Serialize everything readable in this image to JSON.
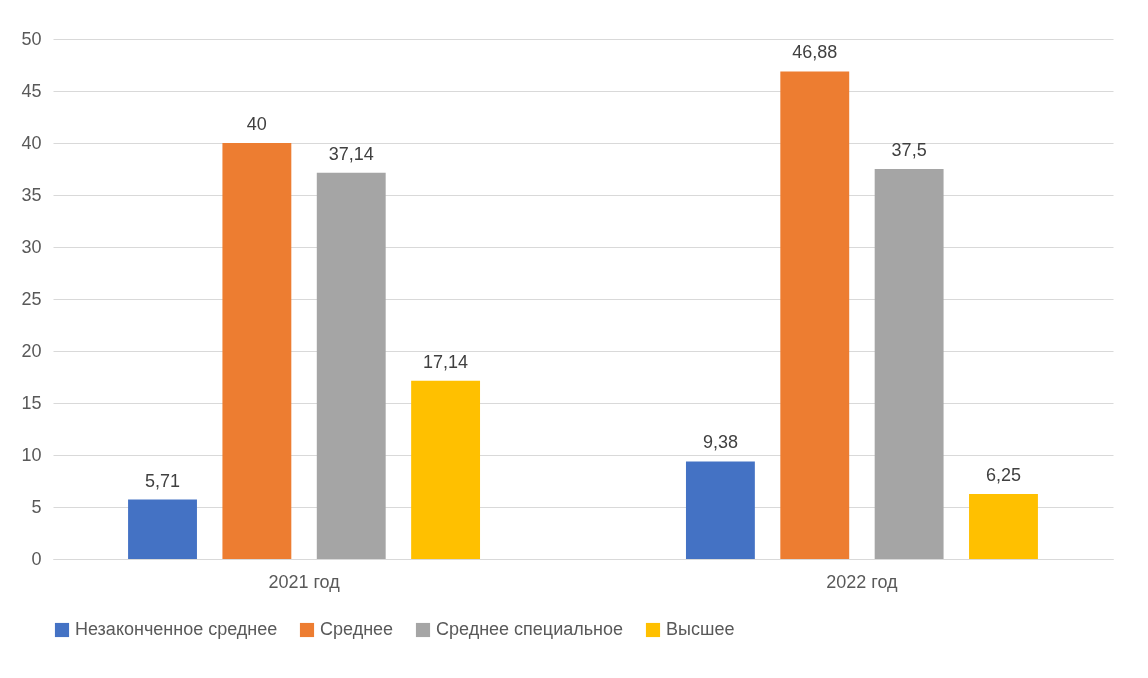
{
  "chart_data": {
    "type": "bar",
    "categories": [
      "2021 год",
      "2022 год"
    ],
    "series": [
      {
        "name": "Незаконченное среднее",
        "color": "#4472c4",
        "values": [
          5.71,
          9.38
        ],
        "value_labels": [
          "5,71",
          "9,38"
        ]
      },
      {
        "name": "Среднее",
        "color": "#ed7d31",
        "values": [
          40,
          46.88
        ],
        "value_labels": [
          "40",
          "46,88"
        ]
      },
      {
        "name": "Среднее специальное",
        "color": "#a5a5a5",
        "values": [
          37.14,
          37.5
        ],
        "value_labels": [
          "37,14",
          "37,5"
        ]
      },
      {
        "name": "Высшее",
        "color": "#ffc000",
        "values": [
          17.14,
          6.25
        ],
        "value_labels": [
          "17,14",
          "6,25"
        ]
      }
    ],
    "ylim": [
      0,
      50
    ],
    "yticks": [
      0,
      5,
      10,
      15,
      20,
      25,
      30,
      35,
      40,
      45,
      50
    ],
    "grid": "y",
    "legend": "bottom"
  }
}
